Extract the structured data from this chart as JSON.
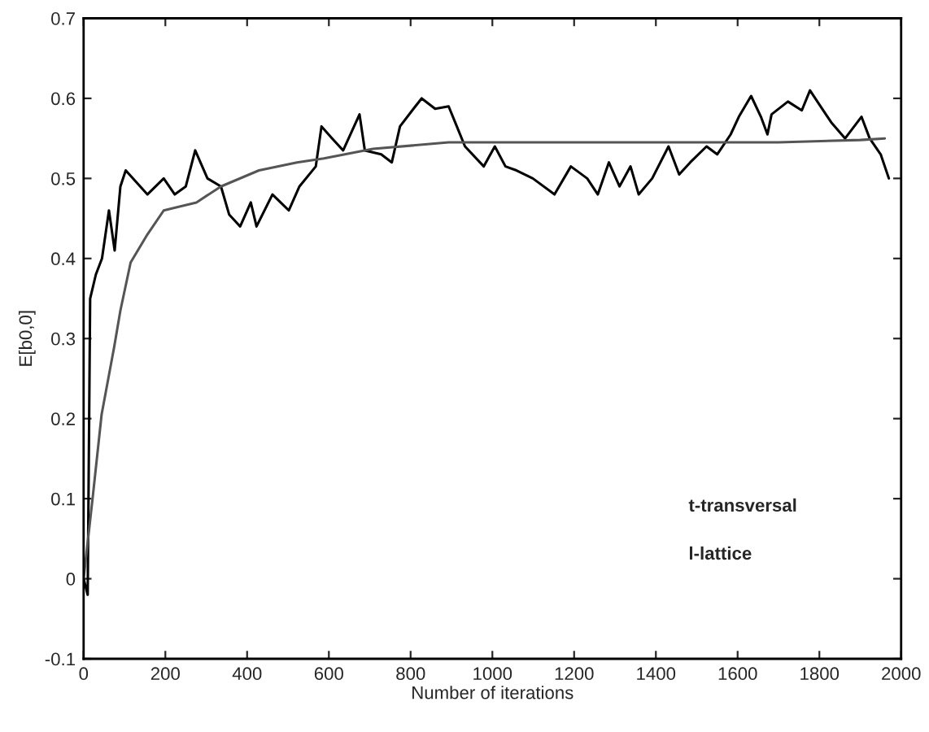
{
  "chart_data": {
    "type": "line",
    "xlabel": "Number of iterations",
    "ylabel": "E[b0,0]",
    "xlim": [
      0,
      2000
    ],
    "ylim": [
      -0.1,
      0.7
    ],
    "xticks": [
      0,
      200,
      400,
      600,
      800,
      1000,
      1200,
      1400,
      1600,
      1800,
      2000
    ],
    "yticks": [
      -0.1,
      0,
      0.1,
      0.2,
      0.3,
      0.4,
      0.5,
      0.6,
      0.7
    ],
    "grid": false,
    "line_style": "solid",
    "marker": "none",
    "annotations": [
      "t-transversal",
      "l-lattice"
    ],
    "series": [
      {
        "color": "#000000",
        "x": [
          0,
          10,
          16,
          30,
          45,
          62,
          76,
          90,
          103,
          156,
          196,
          223,
          250,
          273,
          303,
          336,
          356,
          383,
          409,
          423,
          462,
          502,
          528,
          568,
          582,
          608,
          635,
          675,
          688,
          728,
          754,
          774,
          807,
          827,
          860,
          893,
          913,
          933,
          979,
          1006,
          1032,
          1059,
          1099,
          1152,
          1192,
          1232,
          1258,
          1285,
          1311,
          1338,
          1358,
          1391,
          1431,
          1457,
          1484,
          1524,
          1550,
          1583,
          1603,
          1633,
          1657,
          1673,
          1683,
          1723,
          1757,
          1777,
          1803,
          1829,
          1863,
          1903,
          1923,
          1950,
          1970
        ],
        "values": [
          0,
          -0.02,
          0.35,
          0.38,
          0.4,
          0.46,
          0.41,
          0.49,
          0.51,
          0.48,
          0.5,
          0.48,
          0.49,
          0.535,
          0.5,
          0.49,
          0.455,
          0.44,
          0.47,
          0.44,
          0.48,
          0.46,
          0.49,
          0.515,
          0.565,
          0.55,
          0.535,
          0.58,
          0.535,
          0.53,
          0.52,
          0.565,
          0.587,
          0.6,
          0.587,
          0.59,
          0.565,
          0.54,
          0.515,
          0.54,
          0.515,
          0.51,
          0.5,
          0.48,
          0.515,
          0.5,
          0.48,
          0.52,
          0.49,
          0.515,
          0.48,
          0.5,
          0.54,
          0.505,
          0.52,
          0.54,
          0.53,
          0.555,
          0.577,
          0.603,
          0.577,
          0.555,
          0.58,
          0.596,
          0.585,
          0.61,
          0.59,
          0.57,
          0.55,
          0.577,
          0.55,
          0.53,
          0.5
        ]
      },
      {
        "color": "#555555",
        "x": [
          0,
          23,
          44,
          75,
          90,
          115,
          156,
          196,
          276,
          336,
          429,
          522,
          588,
          708,
          893,
          1100,
          1400,
          1700,
          1900,
          1960
        ],
        "values": [
          0,
          0.105,
          0.205,
          0.29,
          0.335,
          0.395,
          0.43,
          0.46,
          0.47,
          0.49,
          0.51,
          0.52,
          0.525,
          0.537,
          0.545,
          0.545,
          0.545,
          0.545,
          0.548,
          0.55
        ]
      }
    ]
  }
}
